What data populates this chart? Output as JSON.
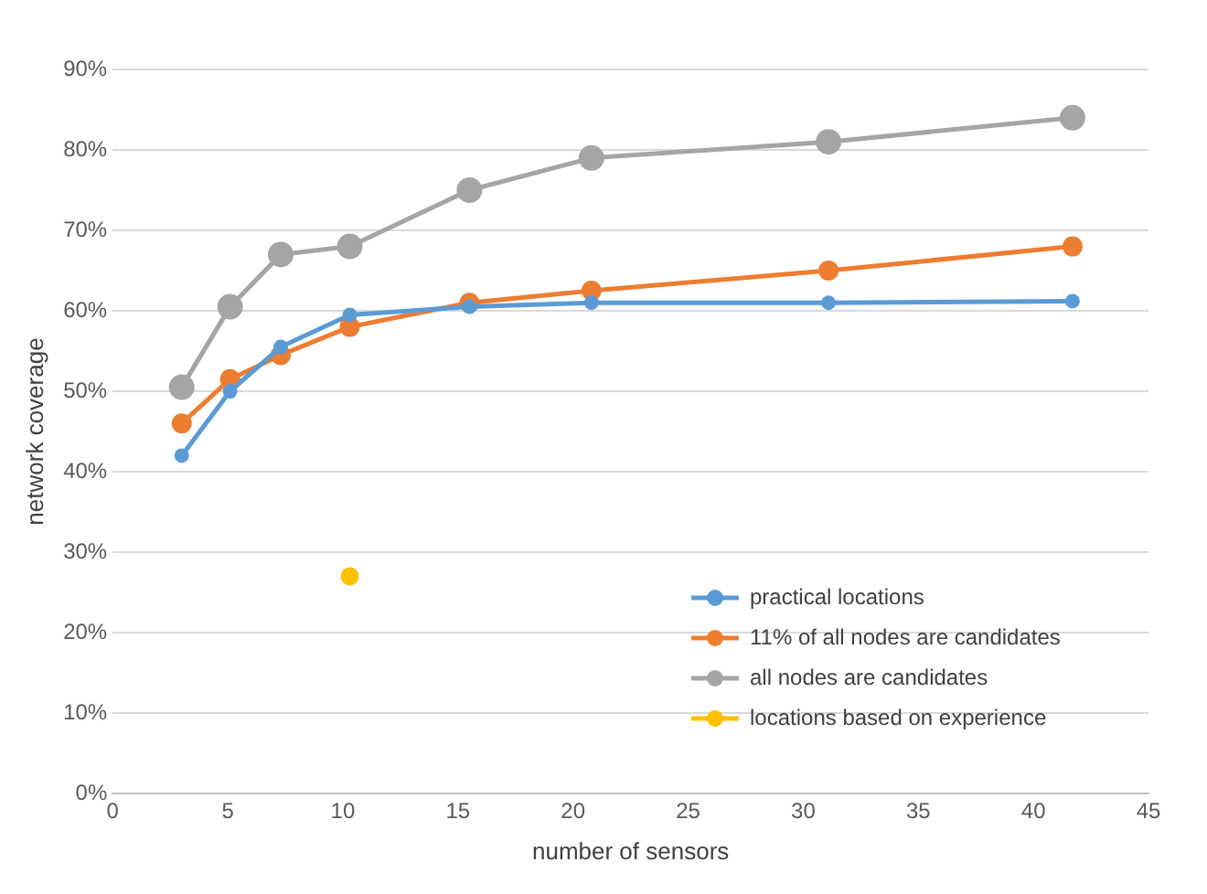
{
  "chart_data": {
    "type": "line",
    "xlabel": "number of sensors",
    "ylabel": "network coverage",
    "xlim": [
      0,
      45
    ],
    "xticks": [
      0,
      5,
      10,
      15,
      20,
      25,
      30,
      35,
      40,
      45
    ],
    "ylim": [
      0,
      90
    ],
    "yticks": [
      {
        "value": 0,
        "label": "0%"
      },
      {
        "value": 10,
        "label": "10%"
      },
      {
        "value": 20,
        "label": "20%"
      },
      {
        "value": 30,
        "label": "30%"
      },
      {
        "value": 40,
        "label": "40%"
      },
      {
        "value": 50,
        "label": "50%"
      },
      {
        "value": 60,
        "label": "60%"
      },
      {
        "value": 70,
        "label": "70%"
      },
      {
        "value": 80,
        "label": "80%"
      },
      {
        "value": 90,
        "label": "90%"
      }
    ],
    "grid": "y",
    "legend": "bottom right",
    "marker": "circle",
    "series": [
      {
        "name": "practical locations",
        "color": "#5b9bd5",
        "x": [
          3,
          5.1,
          7.3,
          10.3,
          15.5,
          20.8,
          31.1,
          41.7
        ],
        "values": [
          42,
          50,
          55.5,
          59.5,
          60.5,
          61,
          61,
          61.2
        ]
      },
      {
        "name": "11% of all nodes are candidates",
        "color": "#ed7d31",
        "x": [
          3,
          5.1,
          7.3,
          10.3,
          15.5,
          20.8,
          31.1,
          41.7
        ],
        "values": [
          46,
          51.5,
          54.5,
          58,
          61,
          62.5,
          65,
          68
        ]
      },
      {
        "name": "all nodes are candidates",
        "color": "#a5a5a5",
        "x": [
          3,
          5.1,
          7.3,
          10.3,
          15.5,
          20.8,
          31.1,
          41.7
        ],
        "values": [
          50.5,
          60.5,
          67,
          68,
          75,
          79,
          81,
          84
        ]
      },
      {
        "name": "locations based on experience",
        "color": "#ffc000",
        "type": "scatter",
        "x": [
          10.3
        ],
        "values": [
          27
        ]
      }
    ]
  }
}
